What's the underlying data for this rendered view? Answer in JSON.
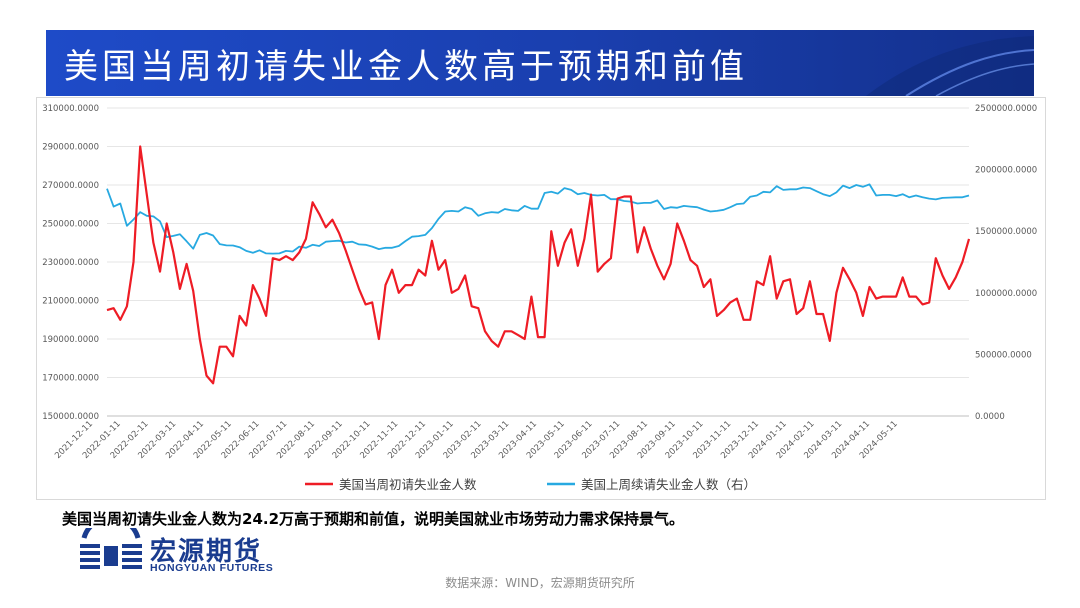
{
  "header": {
    "title": "美国当周初请失业金人数高于预期和前值"
  },
  "summary": "美国当周初请失业金人数为24.2万高于预期和前值，说明美国就业市场劳动力需求保持景气。",
  "logo": {
    "name_cn": "宏源期货",
    "name_en": "HONGYUAN FUTURES"
  },
  "source": "数据来源：WIND，宏源期货研究所",
  "colors": {
    "banner": "#1a3fae",
    "series_initial": "#ee1c25",
    "series_continuing": "#27a9e1",
    "logo": "#1a3c8f"
  },
  "chart_data": {
    "type": "line",
    "y_left": {
      "ylim": [
        150000,
        310000
      ],
      "ticks": [
        "150000.0000",
        "170000.0000",
        "190000.0000",
        "210000.0000",
        "230000.0000",
        "250000.0000",
        "270000.0000",
        "290000.0000",
        "310000.0000"
      ]
    },
    "y_right": {
      "ylim": [
        0,
        2500000
      ],
      "ticks": [
        "0.0000",
        "500000.0000",
        "1000000.0000",
        "1500000.0000",
        "2000000.0000",
        "2500000.0000"
      ]
    },
    "x_ticks": [
      "2021-12-11",
      "2022-01-11",
      "2022-02-11",
      "2022-03-11",
      "2022-04-11",
      "2022-05-11",
      "2022-06-11",
      "2022-07-11",
      "2022-08-11",
      "2022-09-11",
      "2022-10-11",
      "2022-11-11",
      "2022-12-11",
      "2023-01-11",
      "2023-02-11",
      "2023-03-11",
      "2023-04-11",
      "2023-05-11",
      "2023-06-11",
      "2023-07-11",
      "2023-08-11",
      "2023-09-11",
      "2023-10-11",
      "2023-11-11",
      "2023-12-11",
      "2024-01-11",
      "2024-02-11",
      "2024-03-11",
      "2024-04-11",
      "2024-05-11"
    ],
    "legend_position": "bottom",
    "series": [
      {
        "name": "美国当周初请失业金人数",
        "axis": "left",
        "values": [
          205000,
          206000,
          200000,
          207000,
          230000,
          290000,
          265000,
          240000,
          225000,
          250000,
          235000,
          216000,
          229000,
          215000,
          190000,
          171000,
          167000,
          186000,
          186000,
          181000,
          202000,
          197000,
          218000,
          211000,
          202000,
          232000,
          231000,
          233000,
          231000,
          235000,
          242000,
          261000,
          255000,
          248000,
          252000,
          245000,
          236000,
          226000,
          216000,
          208000,
          209000,
          190000,
          218000,
          226000,
          214000,
          218000,
          218000,
          226000,
          223000,
          241000,
          226000,
          231000,
          214000,
          216000,
          223000,
          207000,
          206000,
          194000,
          189000,
          186000,
          194000,
          194000,
          192000,
          190000,
          212000,
          191000,
          191000,
          246000,
          228000,
          240000,
          247000,
          228000,
          242000,
          265000,
          225000,
          229000,
          232000,
          263000,
          264000,
          264000,
          235000,
          248000,
          237000,
          228000,
          221000,
          229000,
          250000,
          241000,
          231000,
          228000,
          217000,
          221000,
          202000,
          205000,
          209000,
          211000,
          200000,
          200000,
          220000,
          218000,
          233000,
          211000,
          220000,
          221000,
          203000,
          206000,
          220000,
          203000,
          203000,
          189000,
          214000,
          227000,
          221000,
          214000,
          202000,
          217000,
          211000,
          212000,
          212000,
          212000,
          222000,
          212000,
          212000,
          208000,
          209000,
          232000,
          223000,
          216000,
          222000,
          230000,
          242000
        ]
      },
      {
        "name": "美国上周续请失业金人数（右）",
        "axis": "right",
        "values": [
          1845000,
          1700000,
          1725000,
          1544000,
          1595000,
          1655000,
          1625000,
          1620000,
          1580000,
          1452000,
          1462000,
          1475000,
          1418000,
          1358000,
          1470000,
          1485000,
          1465000,
          1395000,
          1385000,
          1384000,
          1370000,
          1340000,
          1325000,
          1345000,
          1320000,
          1318000,
          1320000,
          1340000,
          1335000,
          1375000,
          1365000,
          1390000,
          1380000,
          1415000,
          1420000,
          1423000,
          1408000,
          1415000,
          1393000,
          1390000,
          1375000,
          1355000,
          1365000,
          1365000,
          1380000,
          1420000,
          1455000,
          1460000,
          1470000,
          1525000,
          1600000,
          1660000,
          1665000,
          1660000,
          1695000,
          1680000,
          1625000,
          1645000,
          1655000,
          1650000,
          1680000,
          1670000,
          1665000,
          1705000,
          1683000,
          1683000,
          1810000,
          1820000,
          1805000,
          1850000,
          1835000,
          1800000,
          1810000,
          1795000,
          1790000,
          1795000,
          1760000,
          1760000,
          1745000,
          1740000,
          1725000,
          1730000,
          1730000,
          1750000,
          1680000,
          1695000,
          1690000,
          1705000,
          1700000,
          1695000,
          1675000,
          1660000,
          1665000,
          1674000,
          1695000,
          1720000,
          1725000,
          1780000,
          1790000,
          1820000,
          1815000,
          1865000,
          1835000,
          1840000,
          1840000,
          1855000,
          1850000,
          1825000,
          1800000,
          1785000,
          1815000,
          1870000,
          1850000,
          1875000,
          1860000,
          1880000,
          1790000,
          1795000,
          1795000,
          1785000,
          1800000,
          1775000,
          1790000,
          1775000,
          1765000,
          1758000,
          1770000,
          1773000,
          1775000,
          1775000,
          1790000
        ]
      }
    ]
  }
}
